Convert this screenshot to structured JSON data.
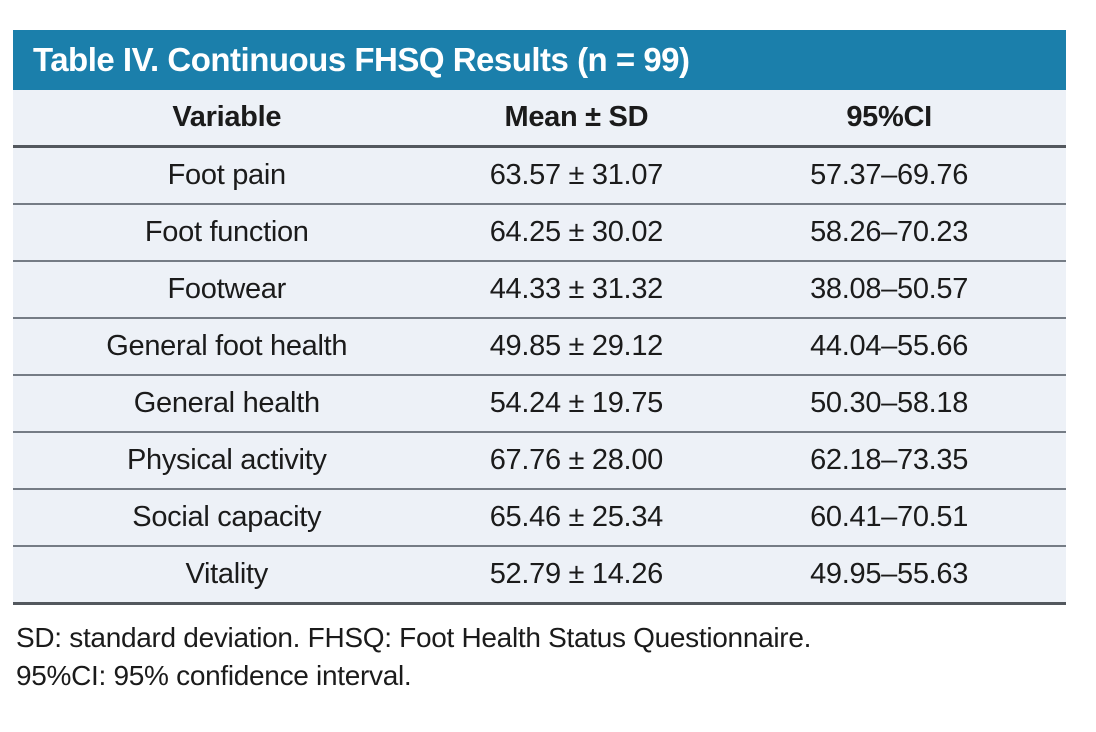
{
  "table": {
    "title": "Table IV. Continuous FHSQ Results (n = 99)",
    "columns": {
      "variable": "Variable",
      "mean_sd": "Mean ± SD",
      "ci": "95%CI"
    },
    "rows": [
      {
        "variable": "Foot pain",
        "mean_sd": "63.57 ± 31.07",
        "ci": "57.37–69.76"
      },
      {
        "variable": "Foot function",
        "mean_sd": "64.25 ± 30.02",
        "ci": "58.26–70.23"
      },
      {
        "variable": "Footwear",
        "mean_sd": "44.33 ± 31.32",
        "ci": "38.08–50.57"
      },
      {
        "variable": "General foot health",
        "mean_sd": "49.85 ± 29.12",
        "ci": "44.04–55.66"
      },
      {
        "variable": "General health",
        "mean_sd": "54.24 ± 19.75",
        "ci": "50.30–58.18"
      },
      {
        "variable": "Physical activity",
        "mean_sd": "67.76 ± 28.00",
        "ci": "62.18–73.35"
      },
      {
        "variable": "Social capacity",
        "mean_sd": "65.46 ± 25.34",
        "ci": "60.41–70.51"
      },
      {
        "variable": "Vitality",
        "mean_sd": "52.79 ± 14.26",
        "ci": "49.95–55.63"
      }
    ],
    "footnotes": [
      "SD: standard deviation. FHSQ: Foot Health Status Questionnaire.",
      "95%CI: 95% confidence interval."
    ]
  },
  "colors": {
    "title_bar_background": "#1b7fab",
    "title_text": "#ffffff",
    "row_background": "#edf1f7",
    "heavy_rule": "#53585e",
    "row_rule": "#757c85",
    "body_text": "#1b1b1b"
  }
}
